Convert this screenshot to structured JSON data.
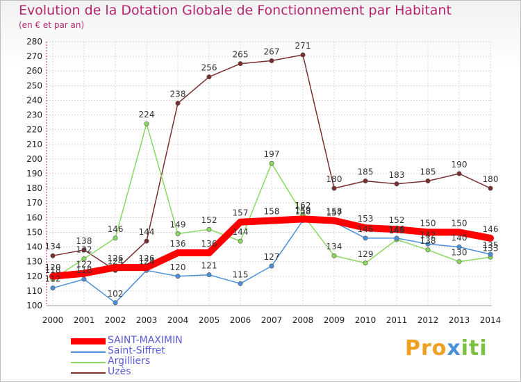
{
  "title": "Evolution de la Dotation Globale de Fonctionnement par Habitant",
  "subtitle": "(en € et par an)",
  "brand": {
    "part1": "Pro",
    "part2": "x",
    "part3": "iti"
  },
  "chart_data": {
    "type": "line",
    "title": "Evolution de la Dotation Globale de Fonctionnement par Habitant",
    "subtitle": "(en € et par an)",
    "xlabel": "",
    "ylabel": "",
    "ylim": [
      100,
      280
    ],
    "yticks": [
      100,
      110,
      120,
      130,
      140,
      150,
      160,
      170,
      180,
      190,
      200,
      210,
      220,
      230,
      240,
      250,
      260,
      270,
      280
    ],
    "grid": true,
    "legend_position": "bottom-left",
    "x": [
      2000,
      2001,
      2002,
      2003,
      2004,
      2005,
      2006,
      2007,
      2008,
      2009,
      2010,
      2011,
      2012,
      2013,
      2014
    ],
    "series": [
      {
        "name": "SAINT-MAXIMIN",
        "color": "#ff0000",
        "values": [
          120,
          122,
          126,
          126,
          136,
          136,
          157,
          158,
          159,
          158,
          153,
          152,
          150,
          150,
          146
        ],
        "labels": [
          "120",
          "122",
          "126",
          "126",
          "136",
          "136",
          "157",
          "158",
          "159",
          "158",
          "153",
          "152",
          "150",
          "150",
          "146"
        ]
      },
      {
        "name": "Saint-Siffret",
        "color": "#4a90d9",
        "values": [
          112,
          118,
          102,
          124,
          120,
          121,
          115,
          127,
          158,
          157,
          146,
          146,
          142,
          140,
          135
        ],
        "labels": [
          "112",
          "118",
          "102",
          "124",
          "120",
          "121",
          "115",
          "127",
          "158",
          "157",
          "146",
          "146",
          "142",
          "140",
          "135"
        ]
      },
      {
        "name": "Argilliers",
        "color": "#88d860",
        "values": [
          118,
          132,
          146,
          224,
          149,
          152,
          144,
          197,
          162,
          134,
          129,
          145,
          138,
          130,
          133
        ],
        "labels": [
          "118",
          "132",
          "146",
          "224",
          "149",
          "152",
          "144",
          "197",
          "162",
          "134",
          "129",
          "145",
          "138",
          "130",
          "133"
        ]
      },
      {
        "name": "Uzès",
        "color": "#7a2e2e",
        "values": [
          134,
          138,
          124,
          144,
          238,
          256,
          265,
          267,
          271,
          180,
          185,
          183,
          185,
          190,
          180
        ],
        "labels": [
          "134",
          "138",
          "124",
          "144",
          "238",
          "256",
          "265",
          "267",
          "271",
          "180",
          "185",
          "183",
          "185",
          "190",
          "180"
        ]
      }
    ]
  }
}
